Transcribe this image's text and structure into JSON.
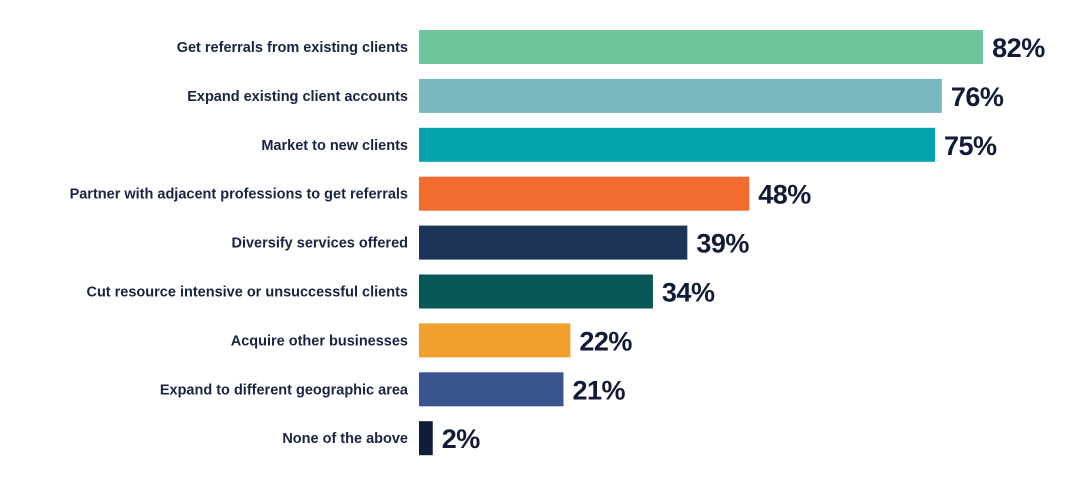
{
  "chart_data": {
    "type": "bar",
    "orientation": "horizontal",
    "title": "",
    "xlabel": "",
    "ylabel": "",
    "xlim": [
      0,
      100
    ],
    "grid": false,
    "unit": "%",
    "categories": [
      "Get referrals from existing clients",
      "Expand existing client accounts",
      "Market to new clients",
      "Partner with adjacent professions to get referrals",
      "Diversify services offered",
      "Cut resource intensive or unsuccessful clients",
      "Acquire other businesses",
      "Expand to different geographic area",
      "None of the above"
    ],
    "values": [
      82,
      76,
      75,
      48,
      39,
      34,
      22,
      21,
      2
    ],
    "value_labels": [
      "82%",
      "76%",
      "75%",
      "48%",
      "39%",
      "34%",
      "22%",
      "21%",
      "2%"
    ],
    "colors": [
      "#6fc59c",
      "#78b9c0",
      "#04a2ab",
      "#f26b2f",
      "#1b3457",
      "#075856",
      "#f1a02d",
      "#3a5490",
      "#0f1c3a"
    ]
  }
}
